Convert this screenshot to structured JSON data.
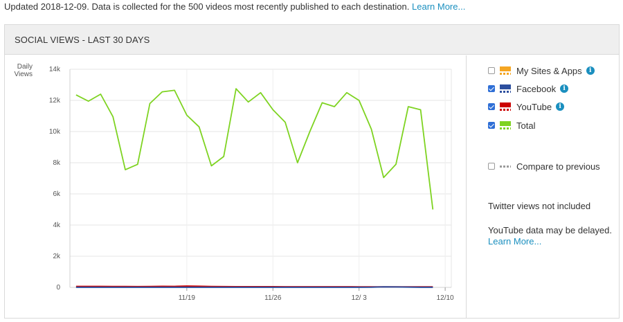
{
  "top_note": {
    "text": "Updated 2018-12-09. Data is collected for the 500 videos most recently published to each destination.",
    "link": "Learn More..."
  },
  "panel": {
    "title": "SOCIAL VIEWS - LAST 30 DAYS"
  },
  "legend": [
    {
      "label": "My Sites & Apps",
      "checked": false,
      "color": "#f5a623",
      "info": true
    },
    {
      "label": "Facebook",
      "checked": true,
      "color": "#2d4f9e",
      "info": true
    },
    {
      "label": "YouTube",
      "checked": true,
      "color": "#cc0000",
      "info": true
    },
    {
      "label": "Total",
      "checked": true,
      "color": "#7ed321",
      "info": false
    }
  ],
  "compare": {
    "label": "Compare to previous",
    "checked": false
  },
  "notes": {
    "twitter": "Twitter views not included",
    "youtube_delay": "YouTube data may be delayed.",
    "youtube_link": "Learn More..."
  },
  "icons": {
    "info": "info-icon",
    "checkbox": "checkbox-icon"
  },
  "chart_data": {
    "type": "line",
    "title": "",
    "ylabel": "Daily Views",
    "ylabel_lines": [
      "Daily",
      "Views"
    ],
    "ylim": [
      0,
      14000
    ],
    "y_ticks": [
      0,
      2000,
      4000,
      6000,
      8000,
      10000,
      12000,
      14000
    ],
    "y_tick_labels": [
      "0",
      "2k",
      "4k",
      "6k",
      "8k",
      "10k",
      "12k",
      "14k"
    ],
    "x": [
      "11/10",
      "11/11",
      "11/12",
      "11/13",
      "11/14",
      "11/15",
      "11/16",
      "11/17",
      "11/18",
      "11/19",
      "11/20",
      "11/21",
      "11/22",
      "11/23",
      "11/24",
      "11/25",
      "11/26",
      "11/27",
      "11/28",
      "11/29",
      "11/30",
      "12/1",
      "12/2",
      "12/3",
      "12/4",
      "12/5",
      "12/6",
      "12/7",
      "12/8",
      "12/9"
    ],
    "x_tick_labels": [
      {
        "label": "11/19",
        "index": 9
      },
      {
        "label": "11/26",
        "index": 16
      },
      {
        "label": "12/ 3",
        "index": 23
      },
      {
        "label": "12/10",
        "index": 30
      }
    ],
    "series": [
      {
        "name": "Total",
        "color": "#7ed321",
        "values": [
          12350,
          11950,
          12400,
          10950,
          7550,
          7900,
          11800,
          12550,
          12650,
          11050,
          10300,
          7800,
          8400,
          12750,
          11900,
          12500,
          11400,
          10600,
          8000,
          10000,
          11850,
          11600,
          12500,
          12000,
          10150,
          7050,
          7900,
          11600,
          11400,
          5000
        ]
      },
      {
        "name": "YouTube",
        "color": "#cc0000",
        "values": [
          60,
          60,
          60,
          55,
          55,
          50,
          55,
          65,
          60,
          85,
          70,
          55,
          50,
          45,
          45,
          45,
          45,
          40,
          40,
          40,
          40,
          40,
          40,
          35,
          30,
          30,
          30,
          30,
          30,
          30
        ]
      },
      {
        "name": "Facebook",
        "color": "#2d4f9e",
        "values": [
          5,
          5,
          5,
          5,
          5,
          5,
          5,
          5,
          5,
          5,
          5,
          5,
          5,
          5,
          5,
          5,
          5,
          5,
          5,
          5,
          5,
          5,
          5,
          5,
          10,
          30,
          25,
          20,
          5,
          5
        ]
      }
    ]
  }
}
